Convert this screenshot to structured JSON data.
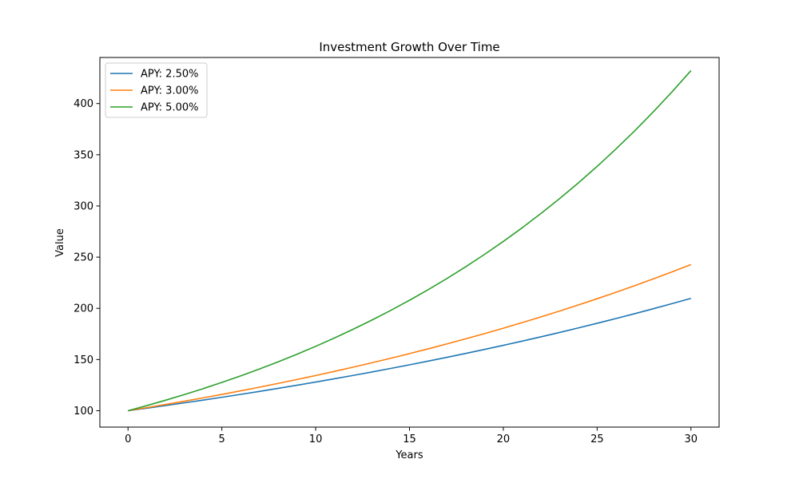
{
  "chart_data": {
    "type": "line",
    "title": "Investment Growth Over Time",
    "xlabel": "Years",
    "ylabel": "Value",
    "xlim": [
      -1.5,
      31.5
    ],
    "ylim": [
      84,
      445
    ],
    "xticks": [
      0,
      5,
      10,
      15,
      20,
      25,
      30
    ],
    "yticks": [
      100,
      150,
      200,
      250,
      300,
      350,
      400
    ],
    "legend_position": "top-left",
    "grid": false,
    "x": [
      0,
      1,
      2,
      3,
      4,
      5,
      6,
      7,
      8,
      9,
      10,
      11,
      12,
      13,
      14,
      15,
      16,
      17,
      18,
      19,
      20,
      21,
      22,
      23,
      24,
      25,
      26,
      27,
      28,
      29,
      30
    ],
    "series": [
      {
        "name": "APY: 2.50%",
        "color": "#1f77b4",
        "values": [
          100.0,
          102.5,
          105.06,
          107.69,
          110.38,
          113.14,
          115.97,
          118.87,
          121.84,
          124.89,
          128.01,
          131.21,
          134.49,
          137.85,
          141.3,
          144.83,
          148.45,
          152.16,
          155.97,
          159.87,
          163.86,
          167.96,
          172.16,
          176.46,
          180.87,
          185.39,
          190.03,
          194.78,
          199.65,
          204.64,
          209.76
        ]
      },
      {
        "name": "APY: 3.00%",
        "color": "#ff7f0e",
        "values": [
          100.0,
          103.0,
          106.09,
          109.27,
          112.55,
          115.93,
          119.41,
          122.99,
          126.68,
          130.48,
          134.39,
          138.42,
          142.58,
          146.85,
          151.26,
          155.8,
          160.47,
          165.28,
          170.24,
          175.35,
          180.61,
          186.03,
          191.61,
          197.36,
          203.28,
          209.38,
          215.66,
          222.13,
          228.79,
          235.66,
          242.73
        ]
      },
      {
        "name": "APY: 5.00%",
        "color": "#2ca02c",
        "values": [
          100.0,
          105.0,
          110.25,
          115.76,
          121.55,
          127.63,
          134.01,
          140.71,
          147.75,
          155.13,
          162.89,
          171.03,
          179.59,
          188.56,
          197.99,
          207.89,
          218.29,
          229.2,
          240.66,
          252.7,
          265.33,
          278.6,
          292.53,
          307.15,
          322.51,
          338.64,
          355.57,
          373.35,
          392.01,
          411.61,
          432.19
        ]
      }
    ]
  }
}
